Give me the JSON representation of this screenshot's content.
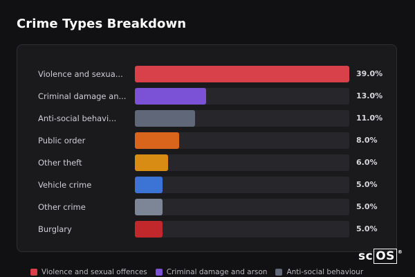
{
  "title": "Crime Types Breakdown",
  "chart_data": {
    "type": "bar",
    "orientation": "horizontal",
    "categories": [
      "Violence and sexua...",
      "Criminal damage an...",
      "Anti-social behavi...",
      "Public order",
      "Other theft",
      "Vehicle crime",
      "Other crime",
      "Burglary"
    ],
    "values": [
      39.0,
      13.0,
      11.0,
      8.0,
      6.0,
      5.0,
      5.0,
      5.0
    ],
    "value_labels": [
      "39.0%",
      "13.0%",
      "11.0%",
      "8.0%",
      "6.0%",
      "5.0%",
      "5.0%",
      "5.0%"
    ],
    "colors": [
      "#d9414a",
      "#7b52d6",
      "#5f6778",
      "#d9641c",
      "#d98c14",
      "#3b74d4",
      "#7d8696",
      "#c0282c"
    ],
    "xlim": [
      0,
      39.0
    ],
    "unit": "%"
  },
  "legend": [
    {
      "label": "Violence and sexual offences",
      "color": "#d9414a"
    },
    {
      "label": "Criminal damage and arson",
      "color": "#7b52d6"
    },
    {
      "label": "Anti-social behaviour",
      "color": "#5f6778"
    }
  ],
  "logo": {
    "text_left": "sc",
    "text_boxed": "OS",
    "mark": "®"
  }
}
